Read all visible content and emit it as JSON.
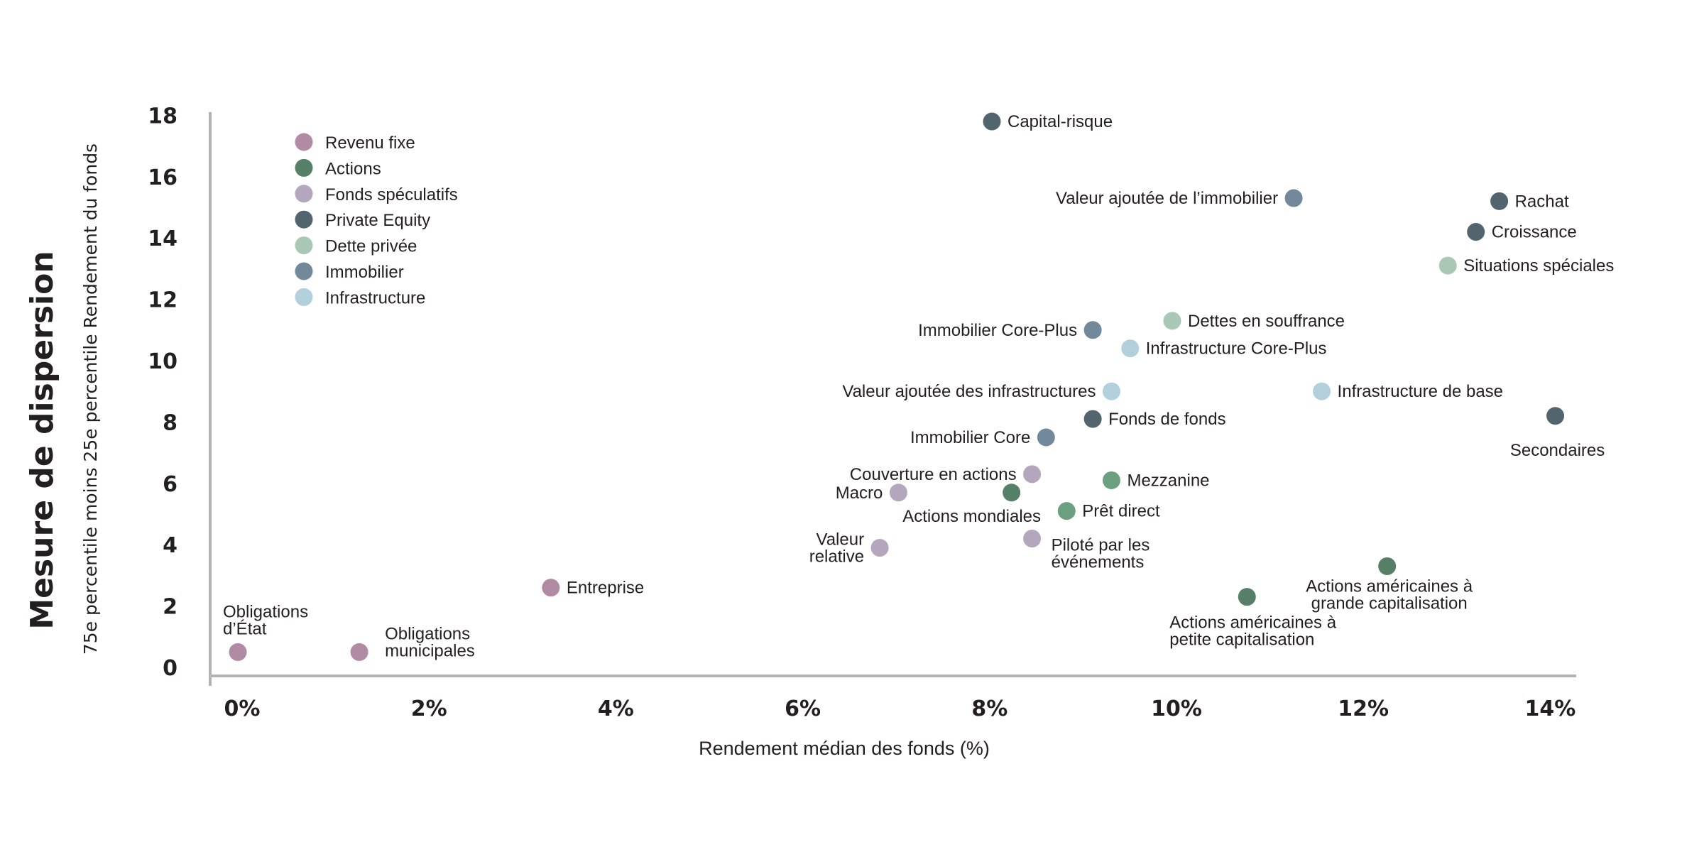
{
  "chart_data": {
    "type": "scatter",
    "title": "",
    "ylabel": "Mesure de dispersion",
    "ylabel_sub": "75e percentile moins 25e percentile Rendement du fonds",
    "xlabel": "Rendement médian des fonds (%)",
    "xlim": [
      0,
      14
    ],
    "ylim": [
      0,
      18
    ],
    "x_ticks": [
      0,
      2,
      4,
      6,
      8,
      10,
      12,
      14
    ],
    "x_tick_labels": [
      "0%",
      "2%",
      "4%",
      "6%",
      "8%",
      "10%",
      "12%",
      "14%"
    ],
    "y_ticks": [
      0,
      2,
      4,
      6,
      8,
      10,
      12,
      14,
      16,
      18
    ],
    "y_tick_labels": [
      "0",
      "2",
      "4",
      "6",
      "8",
      "10",
      "12",
      "14",
      "16",
      "18"
    ],
    "grid": false,
    "legend_position": "top-left",
    "legend": [
      {
        "name": "Revenu fixe",
        "color": "#b08ba3"
      },
      {
        "name": "Actions",
        "color": "#557f66"
      },
      {
        "name": "Fonds spéculatifs",
        "color": "#b3a6bd"
      },
      {
        "name": "Private Equity",
        "color": "#52646e"
      },
      {
        "name": "Dette privée",
        "color": "#a9c7b5"
      },
      {
        "name": "Immobilier",
        "color": "#71899a"
      },
      {
        "name": "Infrastructure",
        "color": "#b1d0dc"
      }
    ],
    "points": [
      {
        "label": [
          "Obligations",
          "d’État"
        ],
        "group": "Revenu fixe",
        "x": 0.0,
        "y": 0.5,
        "color": "#b08ba3",
        "label_pos": "above"
      },
      {
        "label": [
          "Obligations",
          "municipales"
        ],
        "group": "Revenu fixe",
        "x": 1.3,
        "y": 0.5,
        "color": "#b08ba3",
        "label_pos": "right-high"
      },
      {
        "label": [
          "Entreprise"
        ],
        "group": "Revenu fixe",
        "x": 3.35,
        "y": 2.6,
        "color": "#b08ba3",
        "label_pos": "right"
      },
      {
        "label": [
          "Capital-risque"
        ],
        "group": "Private Equity",
        "x": 8.07,
        "y": 17.8,
        "color": "#52646e",
        "label_pos": "right"
      },
      {
        "label": [
          "Valeur ajoutée de l’immobilier"
        ],
        "group": "Immobilier",
        "x": 11.3,
        "y": 15.3,
        "color": "#71899a",
        "label_pos": "left"
      },
      {
        "label": [
          "Rachat"
        ],
        "group": "Private Equity",
        "x": 13.5,
        "y": 15.2,
        "color": "#52646e",
        "label_pos": "right"
      },
      {
        "label": [
          "Croissance"
        ],
        "group": "Private Equity",
        "x": 13.25,
        "y": 14.2,
        "color": "#52646e",
        "label_pos": "right"
      },
      {
        "label": [
          "Situations spéciales"
        ],
        "group": "Dette privée",
        "x": 12.95,
        "y": 13.1,
        "color": "#a9c7b5",
        "label_pos": "right"
      },
      {
        "label": [
          "Dettes en souffrance"
        ],
        "group": "Dette privée",
        "x": 10.0,
        "y": 11.3,
        "color": "#a9c7b5",
        "label_pos": "right"
      },
      {
        "label": [
          "Immobilier Core-Plus"
        ],
        "group": "Immobilier",
        "x": 9.15,
        "y": 11.0,
        "color": "#71899a",
        "label_pos": "left"
      },
      {
        "label": [
          "Infrastructure Core-Plus"
        ],
        "group": "Infrastructure",
        "x": 9.55,
        "y": 10.4,
        "color": "#b1d0dc",
        "label_pos": "right"
      },
      {
        "label": [
          "Valeur ajoutée des infrastructures"
        ],
        "group": "Infrastructure",
        "x": 9.35,
        "y": 9.0,
        "color": "#b1d0dc",
        "label_pos": "left"
      },
      {
        "label": [
          "Infrastructure de base"
        ],
        "group": "Infrastructure",
        "x": 11.6,
        "y": 9.0,
        "color": "#b1d0dc",
        "label_pos": "right"
      },
      {
        "label": [
          "Secondaires"
        ],
        "group": "Private Equity",
        "x": 14.1,
        "y": 8.2,
        "color": "#52646e",
        "label_pos": "below"
      },
      {
        "label": [
          "Fonds de fonds"
        ],
        "group": "Private Equity",
        "x": 9.15,
        "y": 8.1,
        "color": "#52646e",
        "label_pos": "right"
      },
      {
        "label": [
          "Immobilier Core"
        ],
        "group": "Immobilier",
        "x": 8.65,
        "y": 7.5,
        "color": "#71899a",
        "label_pos": "left"
      },
      {
        "label": [
          "Couverture en actions"
        ],
        "group": "Fonds spéculatifs",
        "x": 8.5,
        "y": 6.3,
        "color": "#b3a6bd",
        "label_pos": "left"
      },
      {
        "label": [
          "Macro"
        ],
        "group": "Fonds spéculatifs",
        "x": 7.07,
        "y": 5.7,
        "color": "#b3a6bd",
        "label_pos": "left"
      },
      {
        "label": [
          "Actions mondiales"
        ],
        "group": "Actions",
        "x": 8.28,
        "y": 5.7,
        "color": "#557f66",
        "label_pos": "below-left"
      },
      {
        "label": [
          "Mezzanine"
        ],
        "group": "Dette privée",
        "x": 9.35,
        "y": 6.1,
        "color": "#6aa07f",
        "label_pos": "right"
      },
      {
        "label": [
          "Prêt direct"
        ],
        "group": "Dette privée",
        "x": 8.87,
        "y": 5.1,
        "color": "#6aa07f",
        "label_pos": "right"
      },
      {
        "label": [
          "Piloté par les",
          "événements"
        ],
        "group": "Fonds spéculatifs",
        "x": 8.5,
        "y": 4.2,
        "color": "#b3a6bd",
        "label_pos": "right-low"
      },
      {
        "label": [
          "Valeur",
          "relative"
        ],
        "group": "Fonds spéculatifs",
        "x": 6.87,
        "y": 3.9,
        "color": "#b3a6bd",
        "label_pos": "left"
      },
      {
        "label": [
          "Actions américaines à",
          "grande capitalisation"
        ],
        "group": "Actions",
        "x": 12.3,
        "y": 3.3,
        "color": "#557f66",
        "label_pos": "below"
      },
      {
        "label": [
          "Actions américaines à",
          "petite capitalisation"
        ],
        "group": "Actions",
        "x": 10.8,
        "y": 2.3,
        "color": "#557f66",
        "label_pos": "below-left"
      }
    ]
  }
}
